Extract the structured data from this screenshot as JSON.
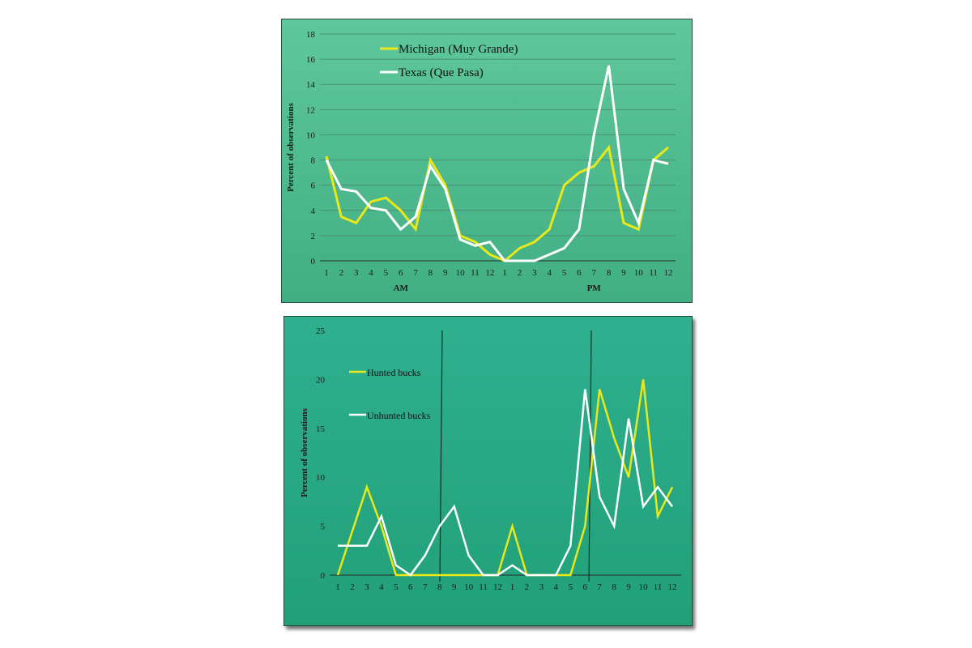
{
  "chart_data": [
    {
      "type": "line",
      "ylabel": "Percent of observations",
      "xlabel": "",
      "period_labels": [
        "AM",
        "PM"
      ],
      "ylim": [
        0,
        18
      ],
      "yticks": [
        0,
        2,
        4,
        6,
        8,
        10,
        12,
        14,
        16,
        18
      ],
      "grid": true,
      "legend_position": "top-left",
      "categories": [
        "1",
        "2",
        "3",
        "4",
        "5",
        "6",
        "7",
        "8",
        "9",
        "10",
        "11",
        "12",
        "1",
        "2",
        "3",
        "4",
        "5",
        "6",
        "7",
        "8",
        "9",
        "10",
        "11",
        "12"
      ],
      "series": [
        {
          "name": "Michigan (Muy Grande)",
          "color": "#e8e81a",
          "values": [
            8.3,
            3.5,
            3.0,
            4.7,
            5.0,
            4.0,
            2.5,
            8.0,
            6.0,
            2.0,
            1.5,
            0.5,
            0.0,
            1.0,
            1.5,
            2.5,
            6.0,
            7.0,
            7.5,
            9.0,
            3.0,
            2.5,
            8.0,
            9.0
          ]
        },
        {
          "name": "Texas (Que Pasa)",
          "color": "#ffffff",
          "values": [
            8.0,
            5.7,
            5.5,
            4.2,
            4.0,
            2.5,
            3.5,
            7.5,
            5.7,
            1.7,
            1.2,
            1.5,
            0.0,
            0.0,
            0.0,
            0.5,
            1.0,
            2.5,
            10.0,
            15.5,
            5.7,
            3.0,
            8.0,
            7.7
          ]
        }
      ]
    },
    {
      "type": "line",
      "ylabel": "Percent of observations",
      "xlabel": "",
      "ylim": [
        0,
        25
      ],
      "yticks": [
        0,
        5,
        10,
        15,
        20,
        25
      ],
      "grid": false,
      "legend_position": "top-left",
      "vertical_markers_at_index": [
        7.1,
        17.35
      ],
      "categories": [
        "1",
        "2",
        "3",
        "4",
        "5",
        "6",
        "7",
        "8",
        "9",
        "10",
        "11",
        "12",
        "1",
        "2",
        "3",
        "4",
        "5",
        "6",
        "7",
        "8",
        "9",
        "10",
        "11",
        "12"
      ],
      "series": [
        {
          "name": "Hunted bucks",
          "color": "#e8e81a",
          "values": [
            0,
            4.5,
            9,
            5,
            0,
            0,
            0,
            0,
            0,
            0,
            0,
            0,
            5,
            0,
            0,
            0,
            0,
            5,
            19,
            14,
            10,
            20,
            6,
            9
          ]
        },
        {
          "name": "Unhunted bucks",
          "color": "#ffffff",
          "values": [
            3,
            3,
            3,
            6,
            1,
            0,
            2,
            5,
            7,
            2,
            0,
            0,
            1,
            0,
            0,
            0,
            3,
            19,
            8,
            5,
            16,
            7,
            9,
            7
          ]
        }
      ]
    }
  ]
}
